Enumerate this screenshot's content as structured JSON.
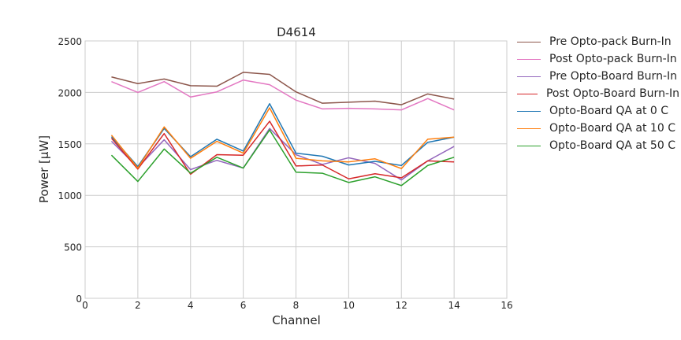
{
  "chart_data": {
    "type": "line",
    "title": "D4614",
    "xlabel": "Channel",
    "ylabel": "Power [μW]",
    "xlim": [
      0,
      16
    ],
    "ylim": [
      0,
      2500
    ],
    "xticks": [
      0,
      2,
      4,
      6,
      8,
      10,
      12,
      14,
      16
    ],
    "yticks": [
      0,
      500,
      1000,
      1500,
      2000,
      2500
    ],
    "grid": true,
    "legend_position": "outside-right",
    "x": [
      1,
      2,
      3,
      4,
      5,
      6,
      7,
      8,
      9,
      10,
      11,
      12,
      13,
      14
    ],
    "series": [
      {
        "name": "Pre Opto-pack Burn-In",
        "color": "#8c564b",
        "values": [
          2150,
          2085,
          2130,
          2065,
          2060,
          2195,
          2175,
          2005,
          1895,
          1905,
          1915,
          1880,
          1985,
          1935
        ]
      },
      {
        "name": "Post Opto-pack Burn-In",
        "color": "#e377c2",
        "values": [
          2105,
          2000,
          2105,
          1955,
          2005,
          2120,
          2075,
          1925,
          1840,
          1845,
          1840,
          1830,
          1940,
          1830
        ]
      },
      {
        "name": "Pre Opto-Board Burn-In",
        "color": "#9467bd",
        "values": [
          1525,
          1270,
          1540,
          1250,
          1340,
          1265,
          1650,
          1395,
          1300,
          1365,
          1310,
          1150,
          1335,
          1475
        ]
      },
      {
        "name": "Post Opto-Board Burn-In",
        "color": "#d62728",
        "values": [
          1555,
          1255,
          1600,
          1205,
          1395,
          1390,
          1720,
          1285,
          1295,
          1160,
          1210,
          1170,
          1335,
          1325
        ]
      },
      {
        "name": "Opto-Board QA at 0 C",
        "color": "#1f77b4",
        "values": [
          1570,
          1280,
          1650,
          1375,
          1545,
          1430,
          1890,
          1410,
          1380,
          1295,
          1330,
          1290,
          1515,
          1565
        ]
      },
      {
        "name": "Opto-Board QA at 10 C",
        "color": "#ff7f0e",
        "values": [
          1585,
          1265,
          1665,
          1360,
          1525,
          1410,
          1850,
          1360,
          1335,
          1325,
          1355,
          1260,
          1545,
          1565
        ]
      },
      {
        "name": "Opto-Board QA at 50 C",
        "color": "#2ca02c",
        "values": [
          1390,
          1135,
          1450,
          1215,
          1370,
          1265,
          1635,
          1225,
          1215,
          1125,
          1180,
          1095,
          1290,
          1370
        ]
      }
    ]
  }
}
